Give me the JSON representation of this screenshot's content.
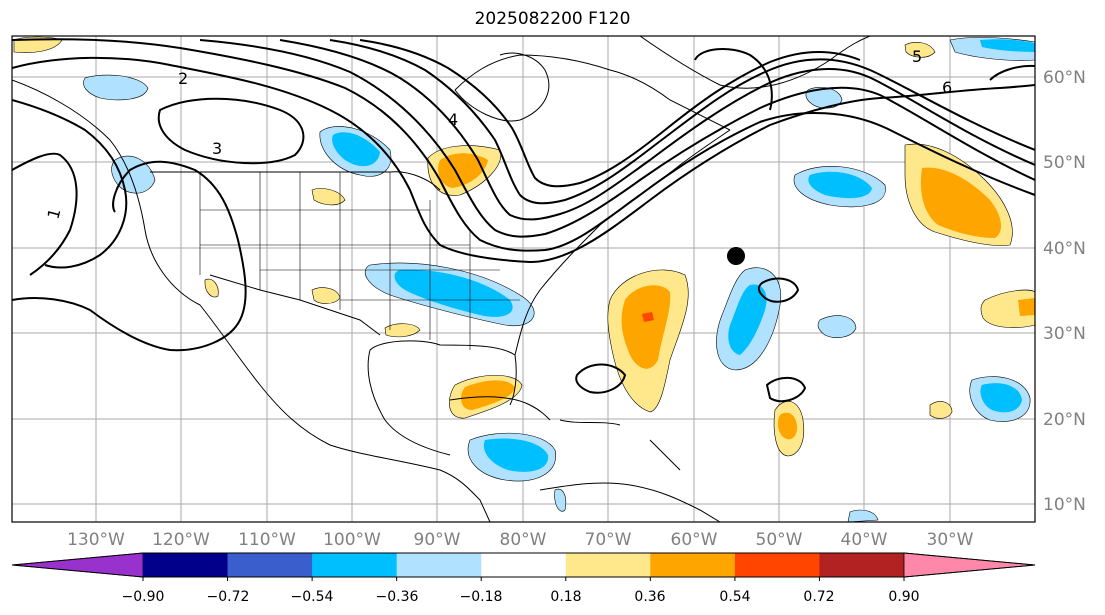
{
  "title": "2025082200 F120",
  "map": {
    "lon_labels": [
      "130°W",
      "120°W",
      "110°W",
      "100°W",
      "90°W",
      "80°W",
      "70°W",
      "60°W",
      "50°W",
      "40°W",
      "30°W"
    ],
    "lat_labels": [
      "60°N",
      "50°N",
      "40°N",
      "30°N",
      "20°N",
      "10°N"
    ],
    "marker": "storm-center-dot",
    "contour_labels": [
      "1",
      "2",
      "3",
      "4",
      "5",
      "6"
    ]
  },
  "colorbar": {
    "colors": [
      "#9932cc",
      "#00008b",
      "#3a5fcd",
      "#00bfff",
      "#b0e2ff",
      "#ffffff",
      "#ffe88c",
      "#ffa500",
      "#ff4500",
      "#b22222",
      "#ff88aa"
    ],
    "tick_labels": [
      "−0.90",
      "−0.72",
      "−0.54",
      "−0.36",
      "−0.18",
      "0.18",
      "0.36",
      "0.54",
      "0.72",
      "0.90"
    ]
  }
}
